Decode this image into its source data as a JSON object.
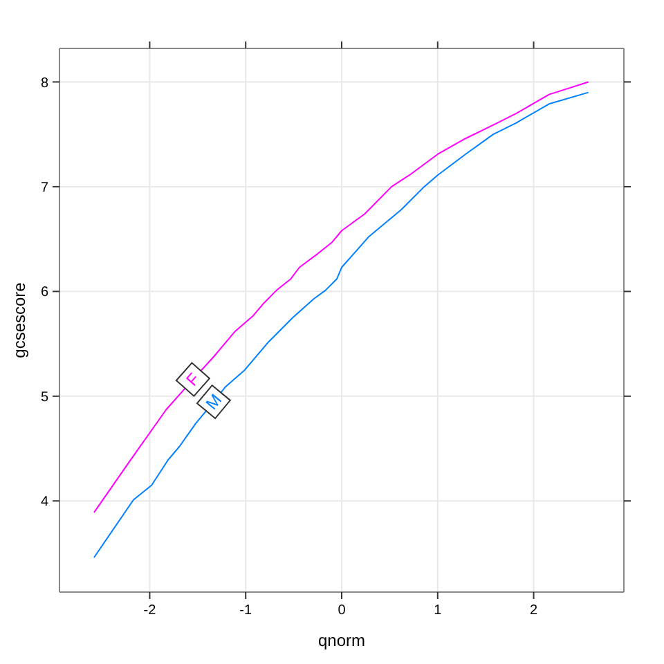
{
  "chart_data": {
    "type": "line",
    "xlabel": "qnorm",
    "ylabel": "gcsescore",
    "xlim": [
      -2.94,
      2.94
    ],
    "ylim": [
      3.13,
      8.32
    ],
    "xticks": [
      -2,
      -1,
      0,
      1,
      2
    ],
    "yticks": [
      4,
      5,
      6,
      7,
      8
    ],
    "grid": true,
    "series": [
      {
        "name": "F",
        "color": "#ff00ff",
        "x": [
          -2.58,
          -2.2,
          -1.83,
          -1.54,
          -1.33,
          -1.11,
          -0.92,
          -0.82,
          -0.68,
          -0.53,
          -0.44,
          -0.25,
          -0.1,
          0.0,
          0.24,
          0.52,
          0.72,
          1.0,
          1.29,
          1.58,
          1.82,
          2.16,
          2.57
        ],
        "values": [
          3.89,
          4.39,
          4.87,
          5.17,
          5.38,
          5.62,
          5.77,
          5.88,
          6.01,
          6.12,
          6.23,
          6.36,
          6.47,
          6.58,
          6.74,
          7.0,
          7.12,
          7.31,
          7.46,
          7.59,
          7.7,
          7.88,
          8.0
        ]
      },
      {
        "name": "M",
        "color": "#0080ff",
        "x": [
          -2.58,
          -2.17,
          -1.98,
          -1.81,
          -1.69,
          -1.52,
          -1.33,
          -1.21,
          -1.01,
          -0.77,
          -0.51,
          -0.29,
          -0.17,
          -0.05,
          0.0,
          0.28,
          0.62,
          0.86,
          1.0,
          1.29,
          1.58,
          1.82,
          2.16,
          2.57
        ],
        "values": [
          3.46,
          4.01,
          4.15,
          4.39,
          4.52,
          4.74,
          4.95,
          5.09,
          5.25,
          5.51,
          5.75,
          5.93,
          6.01,
          6.12,
          6.23,
          6.52,
          6.78,
          7.0,
          7.11,
          7.31,
          7.5,
          7.61,
          7.79,
          7.9
        ]
      }
    ]
  }
}
